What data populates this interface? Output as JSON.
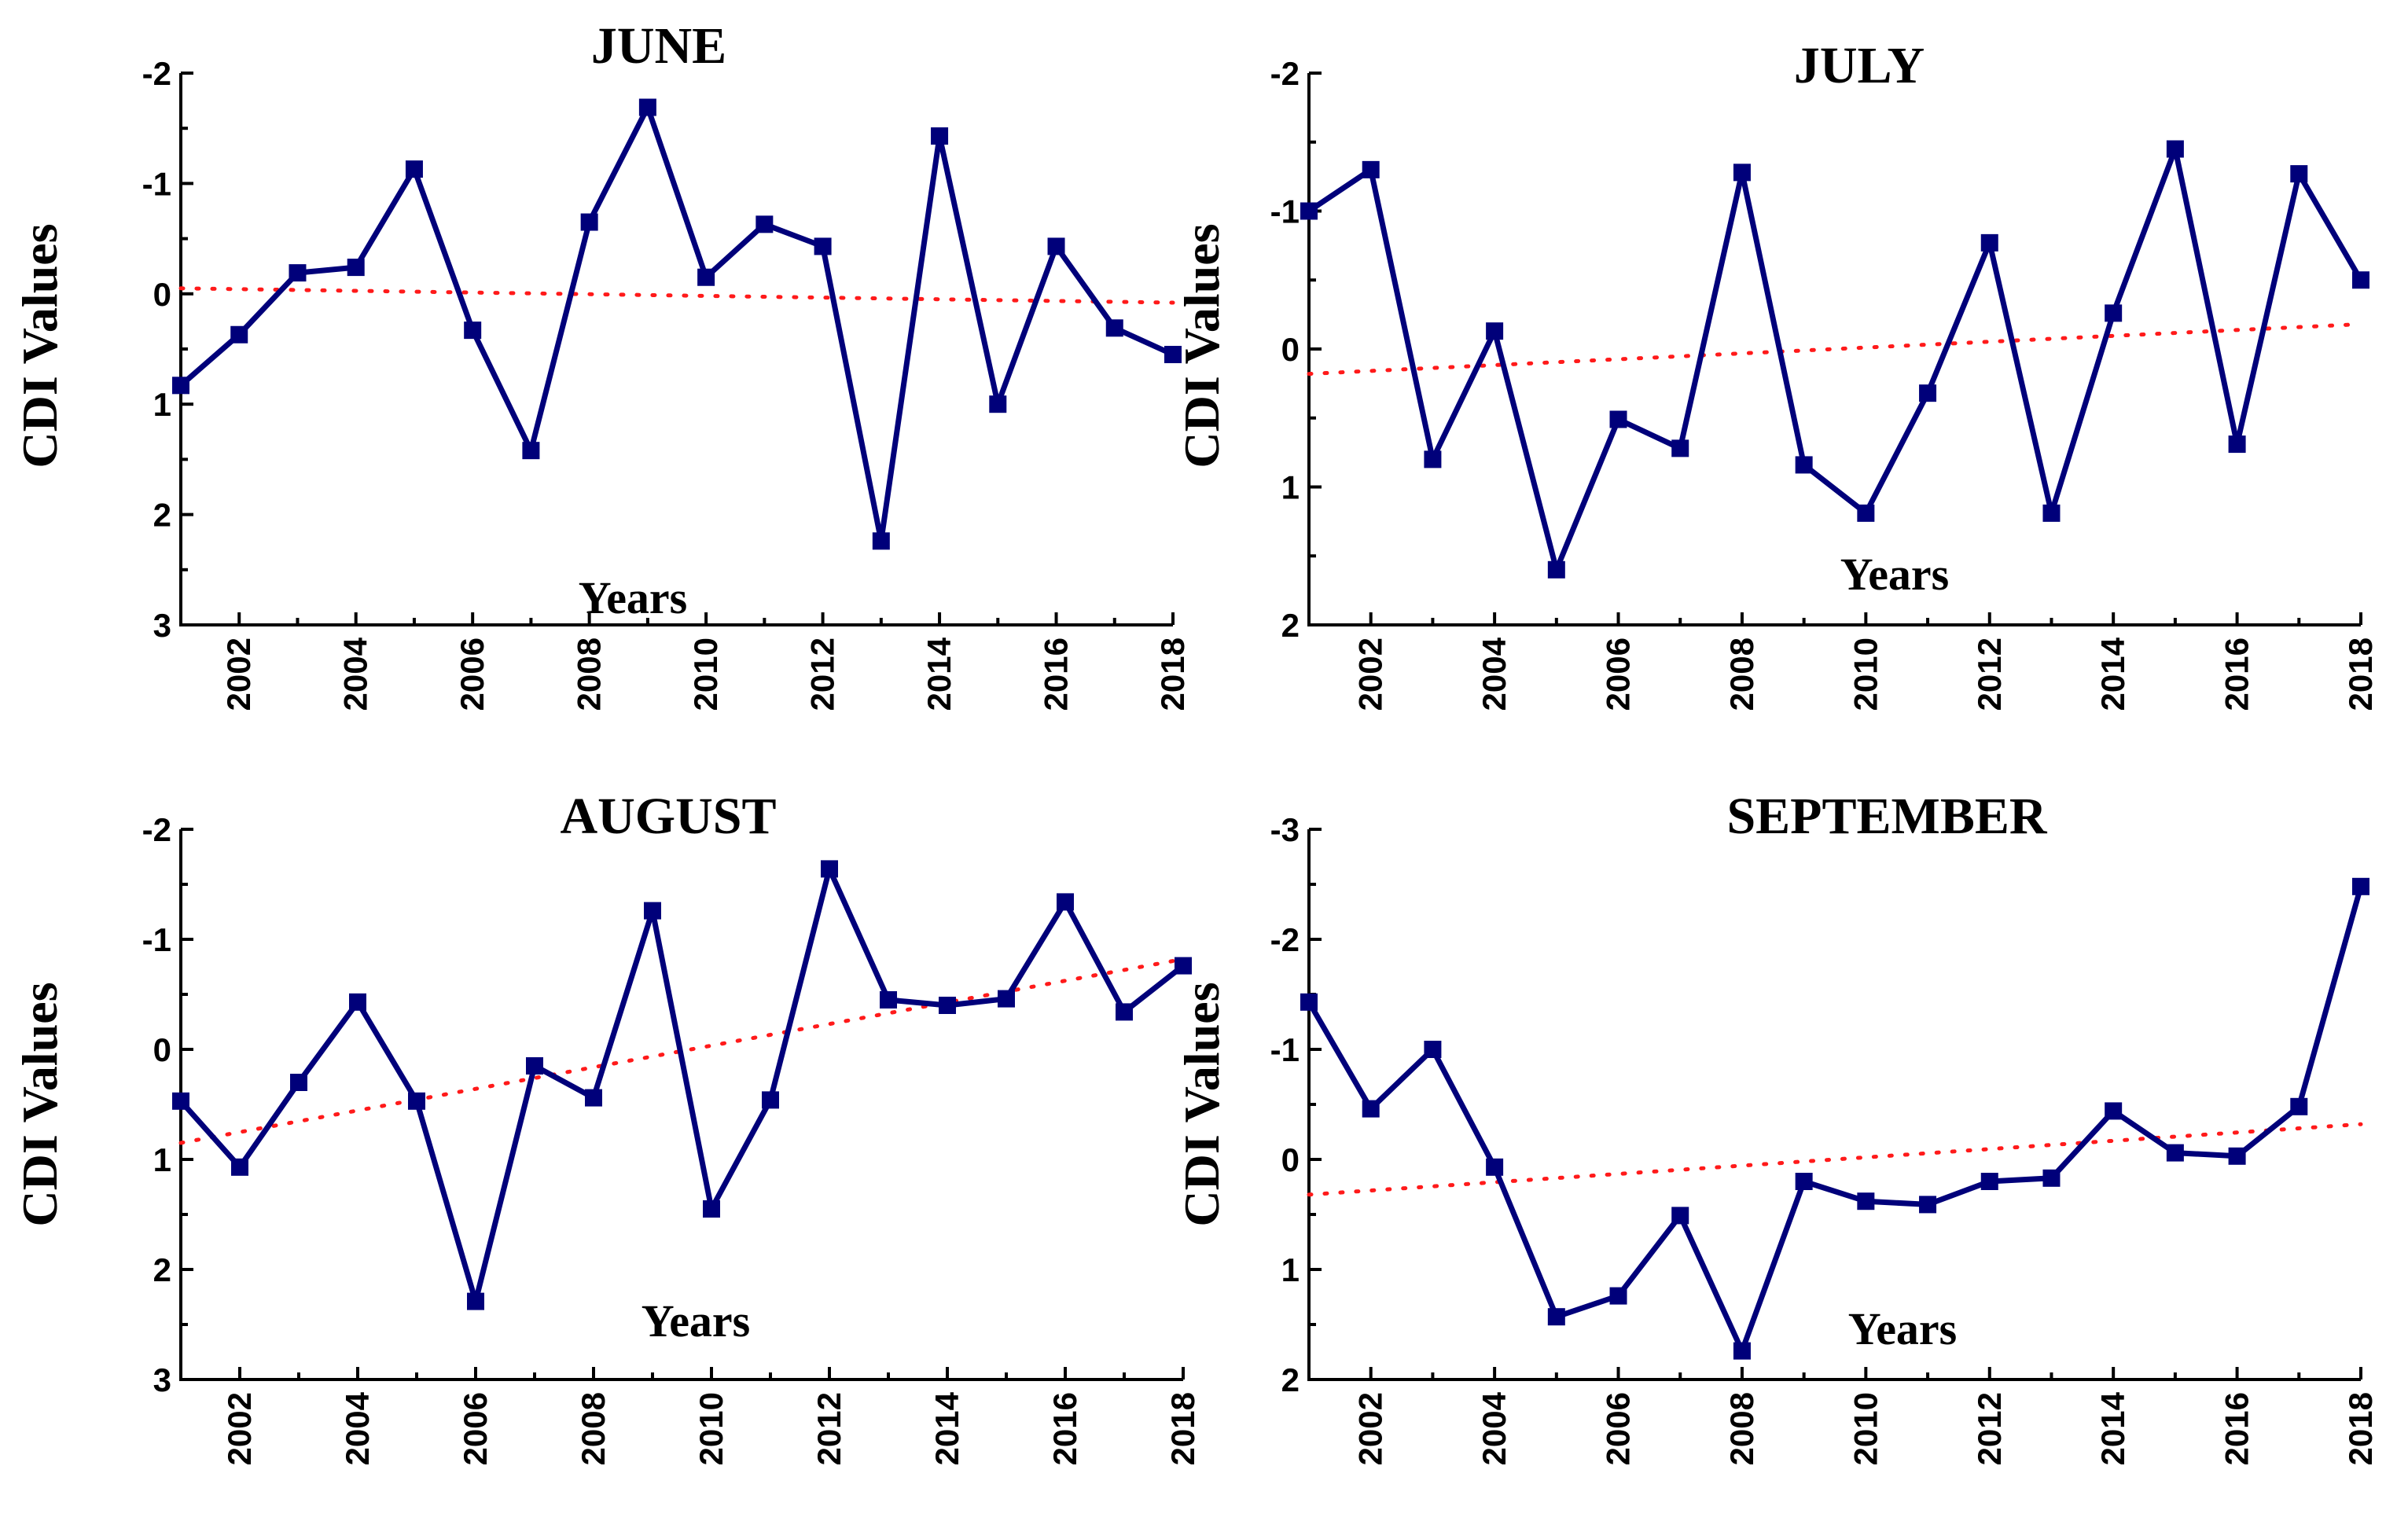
{
  "chart_data": [
    {
      "type": "line",
      "title": "JUNE",
      "xlabel": "Years",
      "ylabel": "CDI Values",
      "y_inverted": true,
      "ylim": [
        -2,
        3
      ],
      "yticks": [
        -2,
        -1,
        0,
        1,
        2,
        3
      ],
      "ytick_labels": [
        "-2",
        "-1",
        "0",
        "1",
        "2",
        "3"
      ],
      "xlim": [
        2001,
        2018
      ],
      "xticks": [
        2002,
        2004,
        2006,
        2008,
        2010,
        2012,
        2014,
        2016,
        2018
      ],
      "xtick_labels": [
        "2002",
        "2004",
        "2006",
        "2008",
        "2010",
        "2012",
        "2014",
        "2016",
        "2018"
      ],
      "x": [
        2001,
        2002,
        2003,
        2004,
        2005,
        2006,
        2007,
        2008,
        2009,
        2010,
        2011,
        2012,
        2013,
        2014,
        2015,
        2016,
        2017,
        2018
      ],
      "series": [
        {
          "name": "CDI",
          "values": [
            0.83,
            0.37,
            -0.19,
            -0.24,
            -1.13,
            0.33,
            1.42,
            -0.65,
            -1.69,
            -0.15,
            -0.63,
            -0.43,
            2.24,
            -1.43,
            1.0,
            -0.43,
            0.31,
            0.55
          ]
        }
      ],
      "trend": [
        -0.05,
        0.08
      ]
    },
    {
      "type": "line",
      "title": "JULY",
      "xlabel": "Years",
      "ylabel": "CDI Values",
      "y_inverted": true,
      "ylim": [
        -2,
        2
      ],
      "yticks": [
        -2,
        -1,
        0,
        1,
        2
      ],
      "ytick_labels": [
        "-2",
        "-1",
        "0",
        "1",
        "2"
      ],
      "xlim": [
        2001,
        2018
      ],
      "xticks": [
        2002,
        2004,
        2006,
        2008,
        2010,
        2012,
        2014,
        2016,
        2018
      ],
      "xtick_labels": [
        "2002",
        "2004",
        "2006",
        "2008",
        "2010",
        "2012",
        "2014",
        "2016",
        "2018"
      ],
      "x": [
        2001,
        2002,
        2003,
        2004,
        2005,
        2006,
        2007,
        2008,
        2009,
        2010,
        2011,
        2012,
        2013,
        2014,
        2015,
        2016,
        2017,
        2018
      ],
      "series": [
        {
          "name": "CDI",
          "values": [
            -1.0,
            -1.3,
            0.8,
            -0.13,
            1.6,
            0.51,
            0.72,
            -1.28,
            0.84,
            1.19,
            0.32,
            -0.77,
            1.19,
            -0.26,
            -1.45,
            0.69,
            -1.27,
            -0.5
          ]
        }
      ],
      "trend": [
        0.18,
        -0.18
      ]
    },
    {
      "type": "line",
      "title": "AUGUST",
      "xlabel": "Years",
      "ylabel": "CDI Values",
      "y_inverted": true,
      "ylim": [
        -2,
        3
      ],
      "yticks": [
        -2,
        -1,
        0,
        1,
        2,
        3
      ],
      "ytick_labels": [
        "-2",
        "-1",
        "0",
        "1",
        "2",
        "3"
      ],
      "xlim": [
        2001,
        2018
      ],
      "xticks": [
        2002,
        2004,
        2006,
        2008,
        2010,
        2012,
        2014,
        2016,
        2018
      ],
      "xtick_labels": [
        "2002",
        "2004",
        "2006",
        "2008",
        "2010",
        "2012",
        "2014",
        "2016",
        "2018"
      ],
      "x": [
        2001,
        2002,
        2003,
        2004,
        2005,
        2006,
        2007,
        2008,
        2009,
        2010,
        2011,
        2012,
        2013,
        2014,
        2015,
        2016,
        2017,
        2018
      ],
      "series": [
        {
          "name": "CDI",
          "values": [
            0.47,
            1.07,
            0.3,
            -0.43,
            0.47,
            2.29,
            0.15,
            0.44,
            -1.26,
            1.45,
            0.46,
            -1.64,
            -0.45,
            -0.4,
            -0.46,
            -1.34,
            -0.34,
            -0.76
          ]
        }
      ],
      "trend": [
        0.85,
        -0.82
      ]
    },
    {
      "type": "line",
      "title": "SEPTEMBER",
      "xlabel": "Years",
      "ylabel": "CDI Values",
      "y_inverted": true,
      "ylim": [
        -3,
        2
      ],
      "yticks": [
        -3,
        -2,
        -1,
        0,
        1,
        2
      ],
      "ytick_labels": [
        "-3",
        "-2",
        "-1",
        "0",
        "1",
        "2"
      ],
      "xlim": [
        2001,
        2018
      ],
      "xticks": [
        2002,
        2004,
        2006,
        2008,
        2010,
        2012,
        2014,
        2016,
        2018
      ],
      "xtick_labels": [
        "2002",
        "2004",
        "2006",
        "2008",
        "2010",
        "2012",
        "2014",
        "2016",
        "2018"
      ],
      "x": [
        2001,
        2002,
        2003,
        2004,
        2005,
        2006,
        2007,
        2008,
        2009,
        2010,
        2011,
        2012,
        2013,
        2014,
        2015,
        2016,
        2017,
        2018
      ],
      "series": [
        {
          "name": "CDI",
          "values": [
            -1.43,
            -0.46,
            -1.0,
            0.07,
            1.43,
            1.24,
            0.51,
            1.74,
            0.2,
            0.38,
            0.41,
            0.2,
            0.17,
            -0.44,
            -0.06,
            -0.03,
            -0.48,
            -2.48
          ]
        }
      ],
      "trend": [
        0.32,
        -0.32
      ]
    }
  ]
}
